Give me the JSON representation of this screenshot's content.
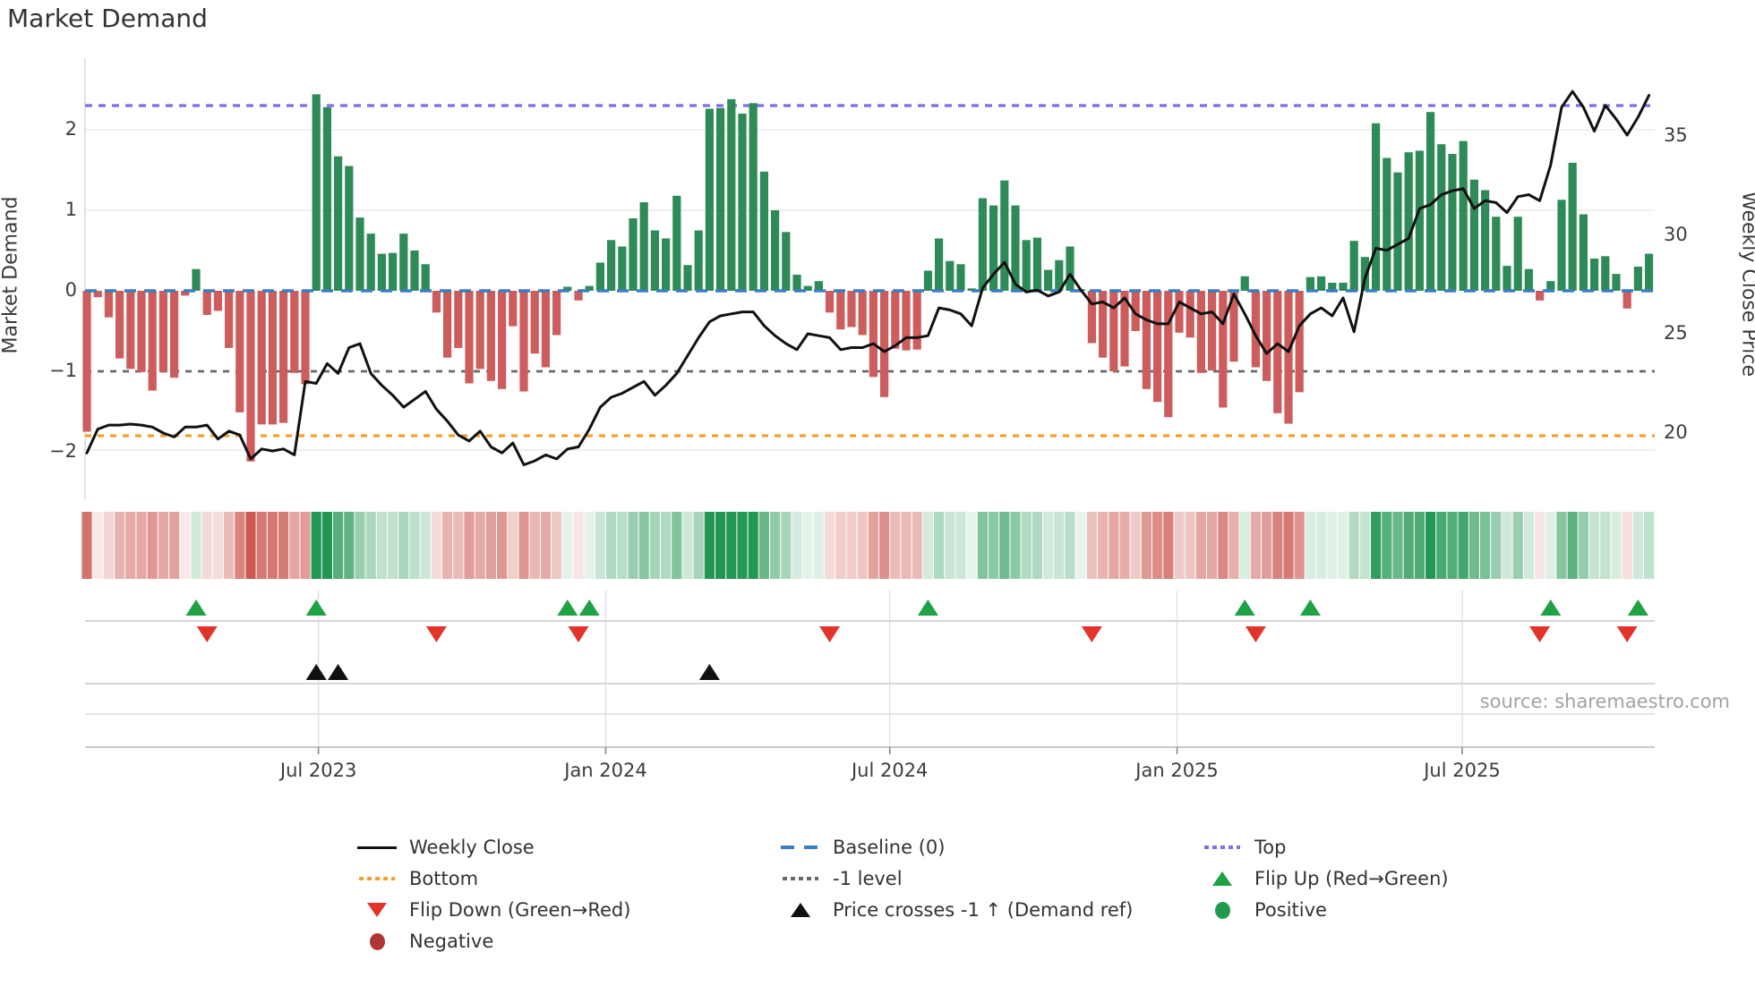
{
  "title": "Market Demand",
  "source_text": "source: sharemaestro.com",
  "colors": {
    "bar_positive": "#2E8B57",
    "bar_negative": "#CD5C5C",
    "price_line": "#111111",
    "baseline": "#3B7EBF",
    "top_line": "#7C6EE4",
    "bottom_line": "#F2A12F",
    "minus1_line": "#696969",
    "flip_up_marker": "#1FA244",
    "flip_down_marker": "#E1342B",
    "price_cross_marker": "#111111",
    "positive_dot": "#229A4E",
    "negative_dot": "#B03535",
    "heatmap_green": "#22964F",
    "heatmap_red": "#C95049",
    "grid": "#ECECF1",
    "panel_line": "#D5D5D5",
    "spine": "#C8C8C8"
  },
  "left_axis": {
    "label": "Market Demand",
    "ticks": [
      "2",
      "1",
      "0",
      "−1",
      "−2"
    ],
    "tick_values": [
      2,
      1,
      0,
      -1,
      -2
    ]
  },
  "right_axis": {
    "label": "Weekly Close Price",
    "ticks": [
      "35",
      "30",
      "25",
      "20"
    ],
    "tick_values": [
      35,
      30,
      25,
      20
    ]
  },
  "chart_data": {
    "type": "composite",
    "title": "Market Demand",
    "x_tick_labels": [
      "Jul 2023",
      "Jan 2024",
      "Jul 2024",
      "Jan 2025",
      "Jul 2025"
    ],
    "x_tick_week_index": [
      21.2,
      47.5,
      73.5,
      99.8,
      125.9
    ],
    "left_ylim": [
      -2.67,
      2.67
    ],
    "right_ylim": [
      16.9,
      38.0
    ],
    "ref_lines": {
      "baseline": 0,
      "top": 2.3,
      "bottom": -1.8,
      "minus1_level": -1
    },
    "series": [
      {
        "name": "Market Demand",
        "type": "bar",
        "axis": "left",
        "values": [
          -1.75,
          -0.08,
          -0.33,
          -0.84,
          -0.97,
          -1.01,
          -1.24,
          -1.01,
          -1.08,
          -0.06,
          0.27,
          -0.3,
          -0.25,
          -0.71,
          -1.51,
          -2.12,
          -1.66,
          -1.66,
          -1.64,
          -1.02,
          -1.16,
          2.44,
          2.28,
          1.67,
          1.55,
          0.91,
          0.71,
          0.46,
          0.47,
          0.71,
          0.5,
          0.33,
          -0.27,
          -0.83,
          -0.71,
          -1.15,
          -0.97,
          -1.12,
          -1.22,
          -0.44,
          -1.25,
          -0.78,
          -0.95,
          -0.55,
          0.05,
          -0.12,
          0.06,
          0.35,
          0.63,
          0.55,
          0.9,
          1.1,
          0.75,
          0.65,
          1.18,
          0.32,
          0.75,
          2.26,
          2.27,
          2.38,
          2.2,
          2.33,
          1.48,
          1.0,
          0.73,
          0.2,
          0.06,
          0.12,
          -0.27,
          -0.48,
          -0.45,
          -0.55,
          -1.07,
          -1.32,
          -0.72,
          -0.74,
          -0.73,
          0.25,
          0.65,
          0.37,
          0.33,
          0.03,
          1.15,
          1.06,
          1.37,
          1.06,
          0.63,
          0.66,
          0.26,
          0.38,
          0.55,
          0.02,
          -0.65,
          -0.83,
          -1.0,
          -0.94,
          -0.5,
          -1.22,
          -1.38,
          -1.57,
          -0.52,
          -0.58,
          -1.02,
          -0.99,
          -1.45,
          -0.88,
          0.18,
          -0.95,
          -1.12,
          -1.52,
          -1.65,
          -1.26,
          0.17,
          0.18,
          0.1,
          0.1,
          0.62,
          0.42,
          2.08,
          1.65,
          1.47,
          1.72,
          1.74,
          2.22,
          1.82,
          1.7,
          1.86,
          1.38,
          1.25,
          0.92,
          0.31,
          0.92,
          0.27,
          -0.12,
          0.12,
          1.13,
          1.59,
          0.95,
          0.4,
          0.43,
          0.21,
          -0.22,
          0.3,
          0.46
        ]
      },
      {
        "name": "Weekly Close",
        "type": "line",
        "axis": "right",
        "values": [
          19.0,
          20.2,
          20.4,
          20.4,
          20.45,
          20.4,
          20.3,
          20.0,
          19.8,
          20.3,
          20.3,
          20.4,
          19.7,
          20.1,
          19.9,
          18.7,
          19.2,
          19.1,
          19.2,
          18.9,
          22.6,
          22.5,
          23.5,
          23.0,
          24.3,
          24.5,
          23.0,
          22.4,
          21.9,
          21.3,
          21.7,
          22.1,
          21.2,
          20.6,
          19.9,
          19.6,
          20.1,
          19.3,
          19.0,
          19.5,
          18.4,
          18.6,
          18.9,
          18.7,
          19.2,
          19.3,
          20.2,
          21.3,
          21.8,
          22.0,
          22.3,
          22.6,
          21.9,
          22.4,
          23.0,
          23.9,
          24.8,
          25.6,
          25.9,
          26.0,
          26.1,
          26.1,
          25.4,
          24.9,
          24.5,
          24.2,
          25.0,
          24.9,
          24.8,
          24.2,
          24.3,
          24.3,
          24.5,
          24.1,
          24.4,
          24.8,
          24.8,
          24.9,
          26.3,
          26.2,
          26.0,
          25.4,
          27.3,
          28.0,
          28.6,
          27.5,
          27.1,
          27.2,
          26.9,
          27.1,
          28.0,
          27.2,
          26.5,
          26.6,
          26.3,
          26.8,
          26.0,
          25.7,
          25.5,
          25.5,
          26.6,
          26.3,
          26.0,
          26.1,
          25.5,
          27.0,
          26.0,
          24.9,
          24.0,
          24.5,
          24.1,
          25.4,
          26.0,
          26.3,
          25.9,
          26.8,
          25.1,
          27.8,
          29.3,
          29.2,
          29.5,
          29.8,
          31.3,
          31.5,
          32.0,
          32.2,
          32.3,
          31.3,
          31.7,
          31.6,
          31.1,
          31.9,
          32.0,
          31.7,
          33.5,
          36.4,
          37.2,
          36.4,
          35.2,
          36.5,
          35.8,
          35.0,
          35.9,
          37.0
        ]
      }
    ],
    "heatmap": {
      "source": "Market Demand bar values rendered as red→green intensity strip",
      "max_abs": 2.3
    },
    "markers": {
      "flip_up_weeks": [
        10,
        21,
        44,
        46,
        77,
        106,
        112,
        134,
        142
      ],
      "flip_down_weeks": [
        11,
        32,
        45,
        68,
        92,
        107,
        133,
        141
      ],
      "price_cross_weeks": [
        21,
        23,
        57
      ]
    }
  },
  "legend": {
    "columns": [
      [
        {
          "label": "Weekly Close",
          "marker": "line-solid",
          "color": "#111111"
        },
        {
          "label": "Bottom",
          "marker": "dots",
          "color": "#F2A12F"
        },
        {
          "label": "Flip Down (Green→Red)",
          "marker": "tri-down",
          "color": "#E1342B"
        },
        {
          "label": "Negative",
          "marker": "circle",
          "color": "#B03535"
        }
      ],
      [
        {
          "label": "Baseline (0)",
          "marker": "dash",
          "color": "#3B7EBF"
        },
        {
          "label": "-1 level",
          "marker": "dots",
          "color": "#696969"
        },
        {
          "label": "Price crosses -1 ↑ (Demand ref)",
          "marker": "tri-up",
          "color": "#111111"
        }
      ],
      [
        {
          "label": "Top",
          "marker": "dots",
          "color": "#7C6EE4"
        },
        {
          "label": "Flip Up (Red→Green)",
          "marker": "tri-up",
          "color": "#1FA244"
        },
        {
          "label": "Positive",
          "marker": "circle",
          "color": "#229A4E"
        }
      ]
    ]
  }
}
